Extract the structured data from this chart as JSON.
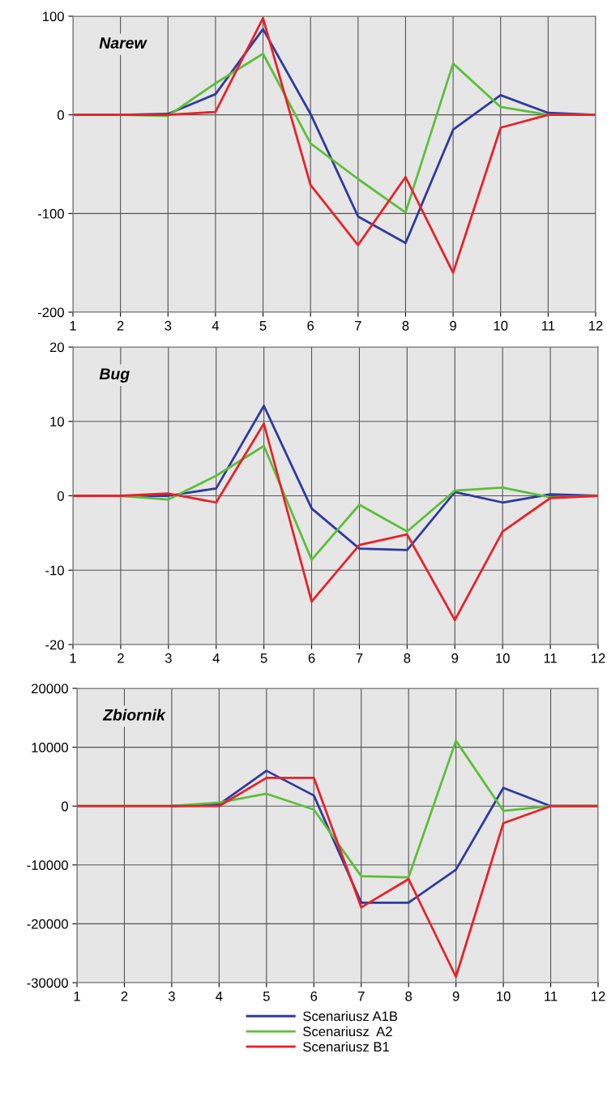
{
  "chart_data": [
    {
      "type": "line",
      "title": "Narew",
      "categories": [
        "1",
        "2",
        "3",
        "4",
        "5",
        "6",
        "7",
        "8",
        "9",
        "10",
        "11",
        "12"
      ],
      "ylim": [
        -200,
        100
      ],
      "yticks": [
        -200,
        -100,
        0,
        100
      ],
      "grid": true,
      "marker": "none",
      "line_style": "solid",
      "series": [
        {
          "color": "#2e3a9e",
          "values": [
            0,
            0,
            1,
            21,
            87,
            1,
            -103,
            -130,
            -15,
            20,
            2,
            0
          ]
        },
        {
          "color": "#5cbf3a",
          "values": [
            0,
            0,
            -1,
            32,
            62,
            -29,
            -65,
            -99,
            52,
            8,
            0,
            0
          ]
        },
        {
          "color": "#e8212a",
          "values": [
            0,
            0,
            0,
            3,
            98,
            -71,
            -132,
            -63,
            -160,
            -13,
            0,
            0
          ]
        }
      ]
    },
    {
      "type": "line",
      "title": "Bug",
      "categories": [
        "1",
        "2",
        "3",
        "4",
        "5",
        "6",
        "7",
        "8",
        "9",
        "10",
        "11",
        "12"
      ],
      "ylim": [
        -20,
        20
      ],
      "yticks": [
        -20,
        -10,
        0,
        10,
        20
      ],
      "grid": true,
      "marker": "none",
      "line_style": "solid",
      "series": [
        {
          "color": "#2e3a9e",
          "values": [
            0,
            0,
            0,
            1,
            12.1,
            -1.7,
            -7.1,
            -7.3,
            0.5,
            -0.9,
            0.2,
            0
          ]
        },
        {
          "color": "#5cbf3a",
          "values": [
            0,
            0,
            -0.5,
            2.7,
            6.7,
            -8.6,
            -1.2,
            -4.8,
            0.7,
            1.1,
            -0.2,
            0
          ]
        },
        {
          "color": "#e8212a",
          "values": [
            0,
            0,
            0.3,
            -0.9,
            9.7,
            -14.2,
            -6.6,
            -5.2,
            -16.7,
            -4.8,
            -0.3,
            0
          ]
        }
      ]
    },
    {
      "type": "line",
      "title": "Zbiornik",
      "categories": [
        "1",
        "2",
        "3",
        "4",
        "5",
        "6",
        "7",
        "8",
        "9",
        "10",
        "11",
        "12"
      ],
      "ylim": [
        -30000,
        20000
      ],
      "yticks": [
        -30000,
        -20000,
        -10000,
        0,
        10000,
        20000
      ],
      "grid": true,
      "marker": "none",
      "line_style": "solid",
      "legend": "bottom",
      "series": [
        {
          "name": "Scenariusz A1B",
          "color": "#2e3a9e",
          "values": [
            null,
            null,
            0,
            300,
            6000,
            1800,
            -16400,
            -16400,
            -10800,
            3100,
            0,
            0
          ]
        },
        {
          "name": "Scenariusz  A2",
          "color": "#5cbf3a",
          "values": [
            0,
            0,
            0,
            600,
            2100,
            -600,
            -11900,
            -12100,
            11100,
            -800,
            0,
            0
          ]
        },
        {
          "name": "Scenariusz B1",
          "color": "#e8212a",
          "values": [
            0,
            0,
            0,
            0,
            4800,
            4800,
            -17200,
            -12400,
            -29000,
            -2900,
            0,
            0
          ]
        }
      ]
    }
  ]
}
